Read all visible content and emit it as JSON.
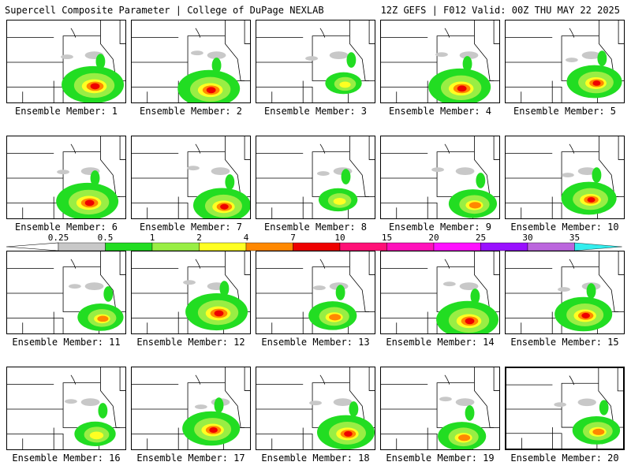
{
  "header": {
    "title_left": "Supercell Composite Parameter | College of DuPage NEXLAB",
    "title_right": "12Z GEFS | F012 Valid: 00Z THU MAY 22 2025"
  },
  "colors": {
    "sub": "#c8c8c8",
    "l1": "#22dd22",
    "l2": "#99ee44",
    "l3": "#ffff22",
    "l4": "#ff8800",
    "l5": "#ee0000",
    "border": "#000000",
    "county": "#999999"
  },
  "colorbar": {
    "levels": [
      "0.25",
      "0.5",
      "1",
      "2",
      "4",
      "7",
      "10",
      "15",
      "20",
      "25",
      "30",
      "35"
    ],
    "colors": [
      "#c8c8c8",
      "#22dd22",
      "#99ee44",
      "#ffff22",
      "#ff8800",
      "#ee0000",
      "#ff1177",
      "#ff11bb",
      "#ff11ff",
      "#9911ff",
      "#bb66dd",
      "#33eeee"
    ]
  },
  "members": [
    {
      "label": "Ensemble Member: 1",
      "intensity": 1.0
    },
    {
      "label": "Ensemble Member: 2",
      "intensity": 1.0
    },
    {
      "label": "Ensemble Member: 3",
      "intensity": 0.45
    },
    {
      "label": "Ensemble Member: 4",
      "intensity": 1.0
    },
    {
      "label": "Ensemble Member: 5",
      "intensity": 0.85
    },
    {
      "label": "Ensemble Member: 6",
      "intensity": 1.0
    },
    {
      "label": "Ensemble Member: 7",
      "intensity": 0.9
    },
    {
      "label": "Ensemble Member: 8",
      "intensity": 0.5
    },
    {
      "label": "Ensemble Member: 9",
      "intensity": 0.7
    },
    {
      "label": "Ensemble Member: 10",
      "intensity": 0.85
    },
    {
      "label": "Ensemble Member: 11",
      "intensity": 0.65
    },
    {
      "label": "Ensemble Member: 12",
      "intensity": 1.0
    },
    {
      "label": "Ensemble Member: 13",
      "intensity": 0.7
    },
    {
      "label": "Ensemble Member: 14",
      "intensity": 1.0
    },
    {
      "label": "Ensemble Member: 15",
      "intensity": 0.9
    },
    {
      "label": "Ensemble Member: 16",
      "intensity": 0.55
    },
    {
      "label": "Ensemble Member: 17",
      "intensity": 0.9
    },
    {
      "label": "Ensemble Member: 18",
      "intensity": 0.9
    },
    {
      "label": "Ensemble Member: 19",
      "intensity": 0.7
    },
    {
      "label": "Ensemble Member: 20",
      "intensity": 0.7
    }
  ]
}
